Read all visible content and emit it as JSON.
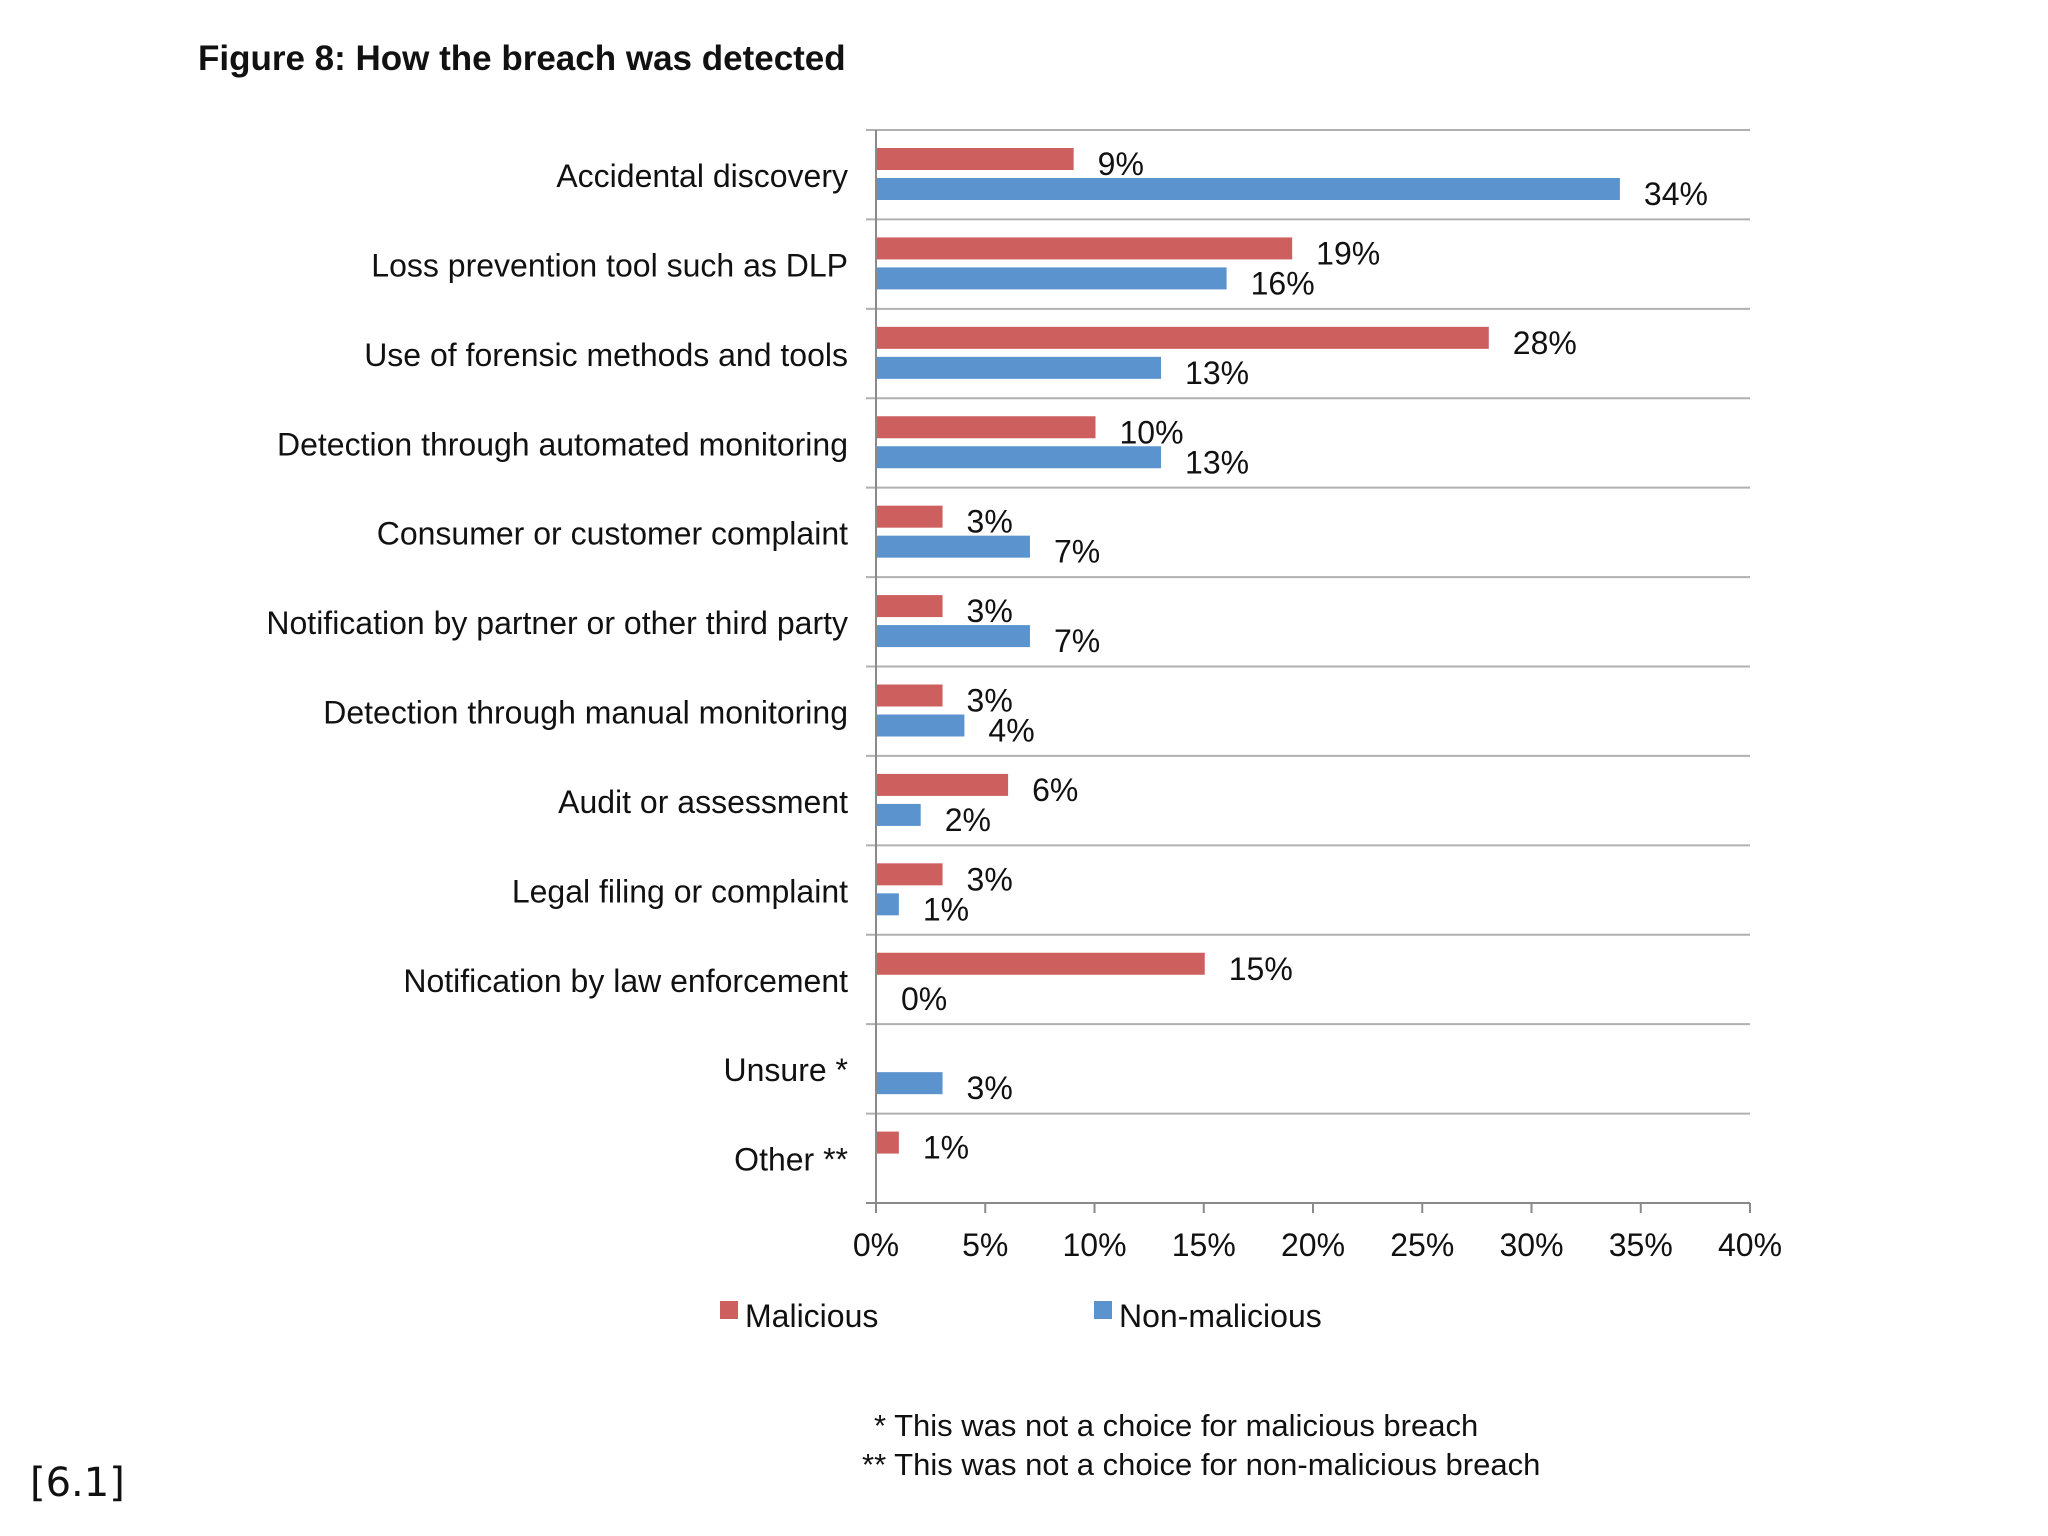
{
  "page_ref": "[6.1]",
  "footnotes": [
    "* This was not a choice for malicious breach",
    "** This was not a choice for non-malicious breach"
  ],
  "colors": {
    "malicious": "#cd5f5e",
    "non_malicious": "#5b93cf",
    "gridline": "#b0b0b0",
    "axis": "#8a8a8a"
  },
  "chart_data": {
    "type": "bar",
    "orientation": "horizontal",
    "title": "Figure 8: How the breach was detected",
    "categories": [
      "Accidental discovery",
      "Loss prevention tool such as DLP",
      "Use of forensic methods and tools",
      "Detection through automated monitoring",
      "Consumer or customer complaint",
      "Notification by partner or other third party",
      "Detection through manual monitoring",
      "Audit or assessment",
      "Legal filing or complaint",
      "Notification by law enforcement",
      "Unsure *",
      "Other **"
    ],
    "series": [
      {
        "name": "Malicious",
        "values": [
          9,
          19,
          28,
          10,
          3,
          3,
          3,
          6,
          3,
          15,
          null,
          1
        ],
        "labels": [
          "9%",
          "19%",
          "28%",
          "10%",
          "3%",
          "3%",
          "3%",
          "6%",
          "3%",
          "15%",
          null,
          "1%"
        ]
      },
      {
        "name": "Non-malicious",
        "values": [
          34,
          16,
          13,
          13,
          7,
          7,
          4,
          2,
          1,
          0,
          3,
          null
        ],
        "labels": [
          "34%",
          "16%",
          "13%",
          "13%",
          "7%",
          "7%",
          "4%",
          "2%",
          "1%",
          "0%",
          "3%",
          null
        ]
      }
    ],
    "xlim": [
      0,
      40
    ],
    "xticks": [
      "0%",
      "5%",
      "10%",
      "15%",
      "20%",
      "25%",
      "30%",
      "35%",
      "40%"
    ],
    "xlabel": "",
    "ylabel": "",
    "legend_position": "bottom",
    "grid": "horizontal separators between categories"
  }
}
